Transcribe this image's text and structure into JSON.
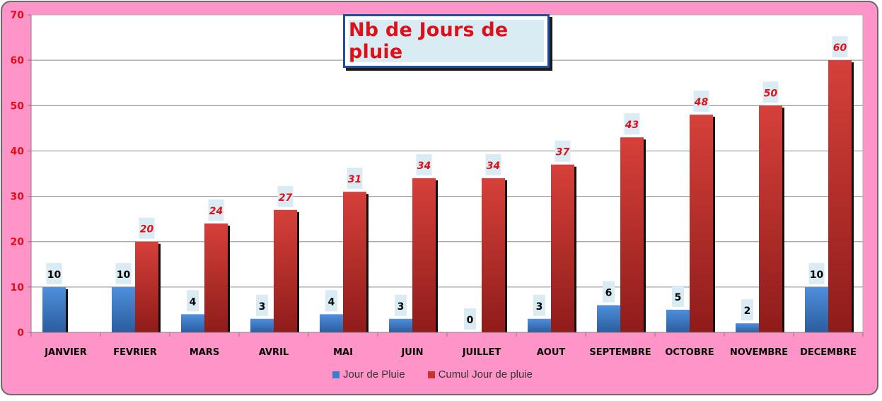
{
  "chart_data": {
    "type": "bar",
    "title": "Nb de Jours de pluie",
    "xlabel": "",
    "ylabel": "",
    "ylim": [
      0,
      70
    ],
    "yticks": [
      0,
      10,
      20,
      30,
      40,
      50,
      60,
      70
    ],
    "grid": true,
    "legend_position": "bottom",
    "categories": [
      "JANVIER",
      "FEVRIER",
      "MARS",
      "AVRIL",
      "MAI",
      "JUIN",
      "JUILLET",
      "AOUT",
      "SEPTEMBRE",
      "OCTOBRE",
      "NOVEMBRE",
      "DECEMBRE"
    ],
    "series": [
      {
        "name": "Jour de Pluie",
        "color": "#3d7cc9",
        "values": [
          10,
          10,
          4,
          3,
          4,
          3,
          0,
          3,
          6,
          5,
          2,
          10
        ],
        "labels": [
          "10",
          "10",
          "4",
          "3",
          "4",
          "3",
          "0",
          "3",
          "6",
          "5",
          "2",
          "10"
        ]
      },
      {
        "name": "Cumul Jour de pluie",
        "color": "#c8322f",
        "values": [
          null,
          20,
          24,
          27,
          31,
          34,
          34,
          37,
          43,
          48,
          50,
          60
        ],
        "labels": [
          "",
          "20",
          "24",
          "27",
          "31",
          "34",
          "34",
          "37",
          "43",
          "48",
          "50",
          "60"
        ]
      }
    ]
  },
  "colors": {
    "background": "#ff94c8",
    "plot_area": "#ffffff",
    "gridline": "#7f7f7f",
    "tick_label": "#e0101a",
    "title_text": "#e0101a",
    "title_border": "#1f4fa0",
    "data_label_bg": "#d9ecf3"
  }
}
